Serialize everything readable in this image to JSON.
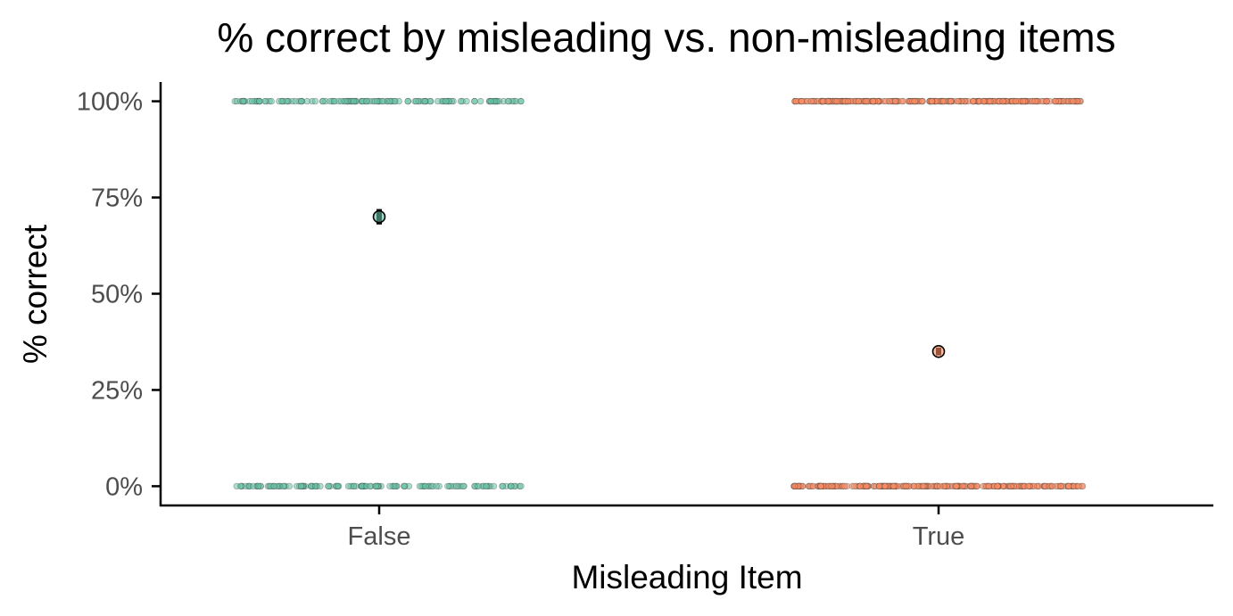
{
  "chart_data": {
    "type": "scatter",
    "title": "% correct by misleading vs. non-misleading items",
    "xlabel": "Misleading Item",
    "ylabel": "% correct",
    "categories": [
      "False",
      "True"
    ],
    "ylim": [
      -0.05,
      1.05
    ],
    "yticks": [
      0,
      0.25,
      0.5,
      0.75,
      1.0
    ],
    "ytick_labels": [
      "0%",
      "25%",
      "50%",
      "75%",
      "100%"
    ],
    "grid": false,
    "legend": "none",
    "series": [
      {
        "category": "False",
        "color": "#66c2a5",
        "mean": 0.7,
        "ci": [
          0.68,
          0.72
        ],
        "raw_values": [
          0,
          1
        ]
      },
      {
        "category": "True",
        "color": "#fc8d62",
        "mean": 0.35,
        "ci": [
          0.34,
          0.36
        ],
        "raw_values": [
          0,
          1
        ]
      }
    ]
  }
}
